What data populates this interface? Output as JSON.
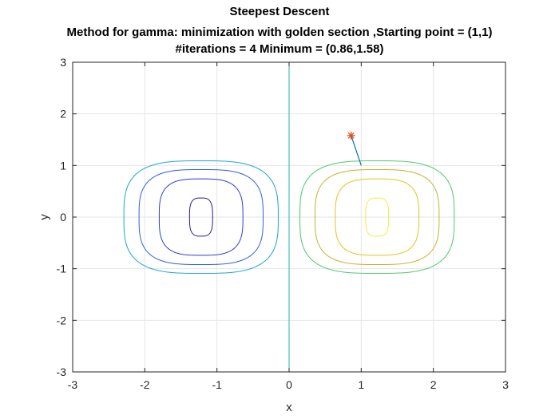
{
  "chart_data": {
    "type": "contour",
    "title_lines": [
      "Steepest Descent",
      "Method for gamma: minimization with golden section ,Starting point = (1,1)",
      "#iterations = 4 Minimum = (0.86,1.58)"
    ],
    "xlabel": "x",
    "ylabel": "y",
    "xlim": [
      -3,
      3
    ],
    "ylim": [
      -3,
      3
    ],
    "xticks": [
      "-3",
      "-2",
      "-1",
      "0",
      "1",
      "2",
      "3"
    ],
    "yticks": [
      "-3",
      "-2",
      "-1",
      "0",
      "1",
      "2",
      "3"
    ],
    "grid": true,
    "contours": [
      {
        "center": [
          -1.22,
          0
        ],
        "half_width": 1.07,
        "half_height": 1.09,
        "color": "#1aa6d6"
      },
      {
        "center": [
          -1.22,
          0
        ],
        "half_width": 0.86,
        "half_height": 0.92,
        "color": "#2f5fe0"
      },
      {
        "center": [
          -1.22,
          0
        ],
        "half_width": 0.58,
        "half_height": 0.74,
        "color": "#2a3ccf"
      },
      {
        "center": [
          -1.22,
          0
        ],
        "half_width": 0.16,
        "half_height": 0.37,
        "color": "#2a1a9a"
      },
      {
        "center": [
          1.22,
          0
        ],
        "half_width": 1.07,
        "half_height": 1.09,
        "color": "#4cc96e"
      },
      {
        "center": [
          1.22,
          0
        ],
        "half_width": 0.86,
        "half_height": 0.92,
        "color": "#c8b22a"
      },
      {
        "center": [
          1.22,
          0
        ],
        "half_width": 0.58,
        "half_height": 0.74,
        "color": "#e3c21c"
      },
      {
        "center": [
          1.22,
          0
        ],
        "half_width": 0.16,
        "half_height": 0.37,
        "color": "#f6ee3a"
      }
    ],
    "vertical_line": {
      "x": 0,
      "color": "#22b3b3"
    },
    "path": {
      "x": [
        1,
        0.86
      ],
      "y": [
        1,
        1.58
      ],
      "color": "#0072bd"
    },
    "minimum_marker": {
      "x": 0.86,
      "y": 1.58,
      "symbol": "*",
      "color": "#d95319"
    }
  }
}
